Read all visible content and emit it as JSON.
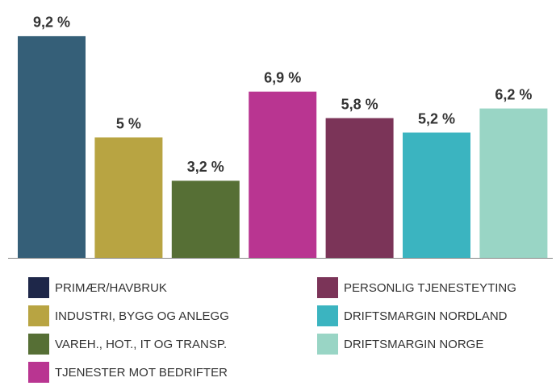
{
  "chart_data": {
    "type": "bar",
    "categories": [
      "PRIMÆR/HAVBRUK",
      "INDUSTRI, BYGG OG ANLEGG",
      "VAREH., HOT., IT OG TRANSP.",
      "TJENESTER MOT BEDRIFTER",
      "PERSONLIG TJENESTEYTING",
      "DRIFTSMARGIN NORDLAND",
      "DRIFTSMARGIN NORGE"
    ],
    "values": [
      9.2,
      5,
      3.2,
      6.9,
      5.8,
      5.2,
      6.2
    ],
    "value_labels": [
      "9,2 %",
      "5 %",
      "3,2 %",
      "6,9 %",
      "5,8 %",
      "5,2 %",
      "6,2 %"
    ],
    "colors": [
      "#355f78",
      "#b8a442",
      "#566f35",
      "#b93591",
      "#7b3458",
      "#3bb4c0",
      "#99d5c5"
    ],
    "legend_colors": [
      "#1e2749",
      "#b8a442",
      "#566f35",
      "#b93591",
      "#7b3458",
      "#3bb4c0",
      "#99d5c5"
    ]
  }
}
